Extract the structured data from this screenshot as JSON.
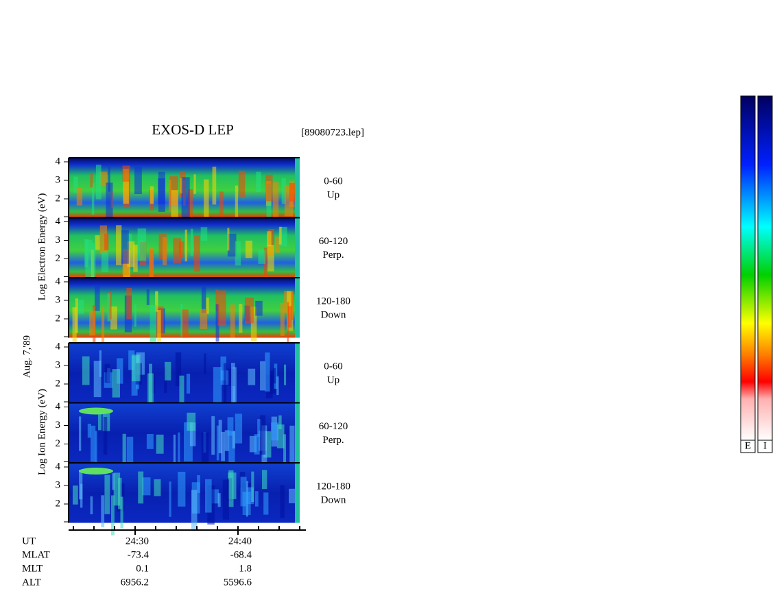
{
  "header": {
    "title": "EXOS-D LEP",
    "file": "[89080723.lep]"
  },
  "date": "Aug. 7,'89",
  "electron": {
    "label": "Log  Electron  Energy (eV)",
    "panels": [
      {
        "range": "0-60",
        "dir": "Up",
        "ticks": [
          "4",
          "3",
          "2"
        ]
      },
      {
        "range": "60-120",
        "dir": "Perp.",
        "ticks": [
          "4",
          "3",
          "2"
        ]
      },
      {
        "range": "120-180",
        "dir": "Down",
        "ticks": [
          "4",
          "3",
          "2"
        ]
      }
    ]
  },
  "ion": {
    "label": "Log  Ion  Energy (eV)",
    "panels": [
      {
        "range": "0-60",
        "dir": "Up",
        "ticks": [
          "4",
          "3",
          "2"
        ]
      },
      {
        "range": "60-120",
        "dir": "Perp.",
        "ticks": [
          "4",
          "3",
          "2"
        ]
      },
      {
        "range": "120-180",
        "dir": "Down",
        "ticks": [
          "4",
          "3",
          "2"
        ]
      }
    ]
  },
  "orbit": {
    "rows": [
      {
        "name": "UT",
        "values": [
          "24:30",
          "24:40"
        ]
      },
      {
        "name": "MLAT",
        "values": [
          "-73.4",
          "-68.4"
        ]
      },
      {
        "name": "MLT",
        "values": [
          "0.1",
          "1.8"
        ]
      },
      {
        "name": "ALT",
        "values": [
          "6956.2",
          "5596.6"
        ]
      }
    ]
  },
  "colorbars": [
    "E",
    "I"
  ]
}
